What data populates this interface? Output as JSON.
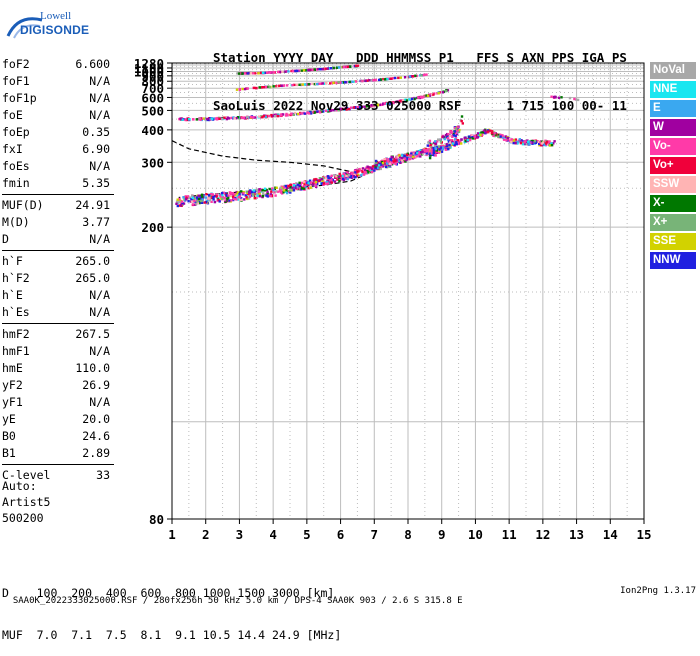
{
  "logo": {
    "line1": "Lowell",
    "line2": "DIGISONDE"
  },
  "header": {
    "row1": "Station YYYY DAY   DDD HHMMSS P1   FFS S AXN PPS IGA PS",
    "row2": "SaoLuis 2022 Nov29 333 025000 RSF      1 715 100 00- 11"
  },
  "params": [
    [
      {
        "label": "foF2",
        "value": "6.600"
      },
      {
        "label": "foF1",
        "value": "N/A"
      },
      {
        "label": "foF1p",
        "value": "N/A"
      },
      {
        "label": "foE",
        "value": "N/A"
      },
      {
        "label": "foEp",
        "value": "0.35"
      },
      {
        "label": "fxI",
        "value": "6.90"
      },
      {
        "label": "foEs",
        "value": "N/A"
      },
      {
        "label": "fmin",
        "value": "5.35"
      }
    ],
    [
      {
        "label": "MUF(D)",
        "value": "24.91"
      },
      {
        "label": "M(D)",
        "value": "3.77"
      },
      {
        "label": "D",
        "value": "N/A"
      }
    ],
    [
      {
        "label": "h`F",
        "value": "265.0"
      },
      {
        "label": "h`F2",
        "value": "265.0"
      },
      {
        "label": "h`E",
        "value": "N/A"
      },
      {
        "label": "h`Es",
        "value": "N/A"
      }
    ],
    [
      {
        "label": "hmF2",
        "value": "267.5"
      },
      {
        "label": "hmF1",
        "value": "N/A"
      },
      {
        "label": "hmE",
        "value": "110.0"
      },
      {
        "label": "yF2",
        "value": "26.9"
      },
      {
        "label": "yF1",
        "value": "N/A"
      },
      {
        "label": "yE",
        "value": "20.0"
      },
      {
        "label": "B0",
        "value": "24.6"
      },
      {
        "label": "B1",
        "value": "2.89"
      }
    ],
    [
      {
        "label": "C-level",
        "value": "33"
      }
    ]
  ],
  "auto": {
    "line1": "Auto:",
    "line2": "Artist5",
    "line3": "500200"
  },
  "muf_table": {
    "row1": "D    100  200  400  600  800 1000 1500 3000 [km]",
    "row2": "MUF  7.0  7.1  7.5  8.1  9.1 10.5 14.4 24.9 [MHz]"
  },
  "footer": {
    "left": "SAA0K_2022333025000.RSF / 280fx256h 50 kHz 5.0 km / DPS-4 SAA0K 903 / 2.6 S 315.8 E",
    "right": "Ion2Png 1.3.17"
  },
  "legend": [
    {
      "label": "NoVal",
      "color": "#a8a8a8"
    },
    {
      "label": "NNE",
      "color": "#19e6f0"
    },
    {
      "label": "E",
      "color": "#3aa8f0"
    },
    {
      "label": "W",
      "color": "#a000a0"
    },
    {
      "label": "Vo-",
      "color": "#ff3aa8"
    },
    {
      "label": "Vo+",
      "color": "#f0003a"
    },
    {
      "label": "SSW",
      "color": "#ffb4b4"
    },
    {
      "label": "X-",
      "color": "#007800"
    },
    {
      "label": "X+",
      "color": "#78b478"
    },
    {
      "label": "SSE",
      "color": "#d2d200"
    },
    {
      "label": "NNW",
      "color": "#2020e0"
    }
  ],
  "chart_data": {
    "type": "scatter",
    "xlim": [
      1,
      15
    ],
    "ylim": [
      80,
      1280
    ],
    "x_ticks": [
      1,
      2,
      3,
      4,
      5,
      6,
      7,
      8,
      9,
      10,
      11,
      12,
      13,
      14,
      15
    ],
    "y_ticks": [
      80,
      200,
      300,
      400,
      500,
      600,
      700,
      800,
      900,
      1000,
      1100,
      1280
    ],
    "grid": true,
    "y_scale": "reciprocal",
    "xlabel": "",
    "ylabel": "",
    "traces": [
      {
        "name": "o-trace",
        "points": [
          [
            1.1,
            232
          ],
          [
            1.5,
            234
          ],
          [
            2.0,
            236
          ],
          [
            2.5,
            238
          ],
          [
            3.0,
            240
          ],
          [
            3.5,
            243
          ],
          [
            4.0,
            247
          ],
          [
            4.5,
            252
          ],
          [
            5.0,
            258
          ],
          [
            5.5,
            265
          ],
          [
            6.0,
            272
          ],
          [
            6.5,
            280
          ],
          [
            7.0,
            290
          ],
          [
            7.5,
            302
          ],
          [
            8.0,
            315
          ],
          [
            8.5,
            333
          ],
          [
            9.0,
            355
          ],
          [
            9.3,
            380
          ],
          [
            9.5,
            420
          ],
          [
            9.6,
            480
          ]
        ]
      },
      {
        "name": "x-trace",
        "points": [
          [
            7.0,
            300
          ],
          [
            8.0,
            318
          ],
          [
            9.0,
            340
          ],
          [
            9.5,
            360
          ],
          [
            10.0,
            380
          ],
          [
            10.3,
            400
          ],
          [
            10.6,
            385
          ],
          [
            11.0,
            365
          ],
          [
            11.5,
            358
          ],
          [
            12.3,
            355
          ]
        ]
      },
      {
        "name": "2nd-hop",
        "points": [
          [
            1.2,
            455
          ],
          [
            2.0,
            456
          ],
          [
            3.0,
            462
          ],
          [
            4.0,
            475
          ],
          [
            5.0,
            492
          ],
          [
            6.0,
            515
          ],
          [
            7.0,
            545
          ],
          [
            7.5,
            565
          ],
          [
            8.0,
            590
          ],
          [
            8.5,
            625
          ],
          [
            9.0,
            670
          ],
          [
            9.2,
            700
          ]
        ]
      },
      {
        "name": "3rd-hop",
        "points": [
          [
            2.9,
            695
          ],
          [
            3.5,
            720
          ],
          [
            4.0,
            740
          ],
          [
            5.0,
            770
          ],
          [
            6.0,
            800
          ],
          [
            7.0,
            840
          ],
          [
            7.5,
            870
          ],
          [
            8.0,
            905
          ],
          [
            8.5,
            950
          ]
        ]
      },
      {
        "name": "4th-hop",
        "points": [
          [
            2.9,
            980
          ],
          [
            3.5,
            990
          ],
          [
            4.0,
            1010
          ],
          [
            4.5,
            1040
          ],
          [
            5.0,
            1070
          ],
          [
            5.5,
            1110
          ],
          [
            6.0,
            1160
          ],
          [
            6.5,
            1220
          ]
        ]
      },
      {
        "name": "oblique",
        "points": [
          [
            12.2,
            615
          ],
          [
            12.5,
            610
          ],
          [
            12.8,
            600
          ],
          [
            13.2,
            580
          ]
        ]
      }
    ],
    "profile_curve": [
      [
        1.0,
        360
      ],
      [
        1.5,
        335
      ],
      [
        2.5,
        315
      ],
      [
        3.5,
        305
      ],
      [
        4.5,
        300
      ],
      [
        5.5,
        292
      ],
      [
        6.3,
        280
      ],
      [
        6.6,
        270
      ],
      [
        6.3,
        262
      ],
      [
        5.5,
        255
      ],
      [
        4.0,
        248
      ],
      [
        3.0,
        244
      ],
      [
        2.0,
        240
      ],
      [
        1.2,
        236
      ]
    ]
  }
}
